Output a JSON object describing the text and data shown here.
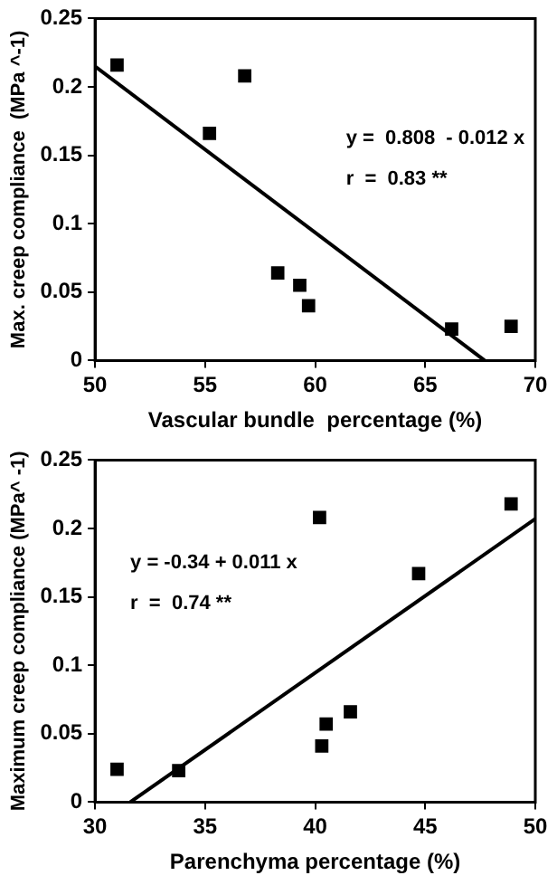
{
  "chart_data": [
    {
      "type": "scatter",
      "xlabel": "Vascular bundle  percentage (%)",
      "ylabel": "Max. creep compliance  (MPa ^-1)",
      "xlim": [
        50,
        70
      ],
      "xticks": [
        50,
        55,
        60,
        65,
        70
      ],
      "ylim": [
        0,
        0.25
      ],
      "yticks": [
        0,
        0.05,
        0.1,
        0.15,
        0.2,
        0.25
      ],
      "marker": "square",
      "grid": false,
      "annotations": [
        "y =  0.808  - 0.012 x",
        "r  =  0.83 **"
      ],
      "series": [
        {
          "type": "scatter",
          "color": "#000000",
          "x": [
            51.0,
            55.2,
            56.8,
            58.3,
            59.3,
            59.7,
            66.2,
            68.9
          ],
          "values": [
            0.216,
            0.166,
            0.208,
            0.064,
            0.055,
            0.04,
            0.023,
            0.025
          ]
        },
        {
          "type": "line",
          "color": "#000000",
          "marker": "none",
          "x": [
            50,
            67.7
          ],
          "values": [
            0.215,
            0
          ]
        }
      ]
    },
    {
      "type": "scatter",
      "xlabel": "Parenchyma percentage (%)",
      "ylabel": "Maximum creep compliance (MPa^ -1)",
      "xlim": [
        30,
        50
      ],
      "xticks": [
        30,
        35,
        40,
        45,
        50
      ],
      "ylim": [
        0,
        0.25
      ],
      "yticks": [
        0,
        0.05,
        0.1,
        0.15,
        0.2,
        0.25
      ],
      "marker": "square",
      "grid": false,
      "annotations": [
        "y = -0.34 + 0.011 x",
        "r  =  0.74 **"
      ],
      "series": [
        {
          "type": "scatter",
          "color": "#000000",
          "x": [
            31.0,
            33.8,
            40.2,
            44.7,
            48.9,
            40.3,
            40.5,
            41.6
          ],
          "values": [
            0.024,
            0.023,
            0.208,
            0.167,
            0.218,
            0.041,
            0.057,
            0.066
          ]
        },
        {
          "type": "line",
          "color": "#000000",
          "marker": "none",
          "x": [
            31.6,
            50
          ],
          "values": [
            0,
            0.207
          ]
        }
      ]
    }
  ]
}
